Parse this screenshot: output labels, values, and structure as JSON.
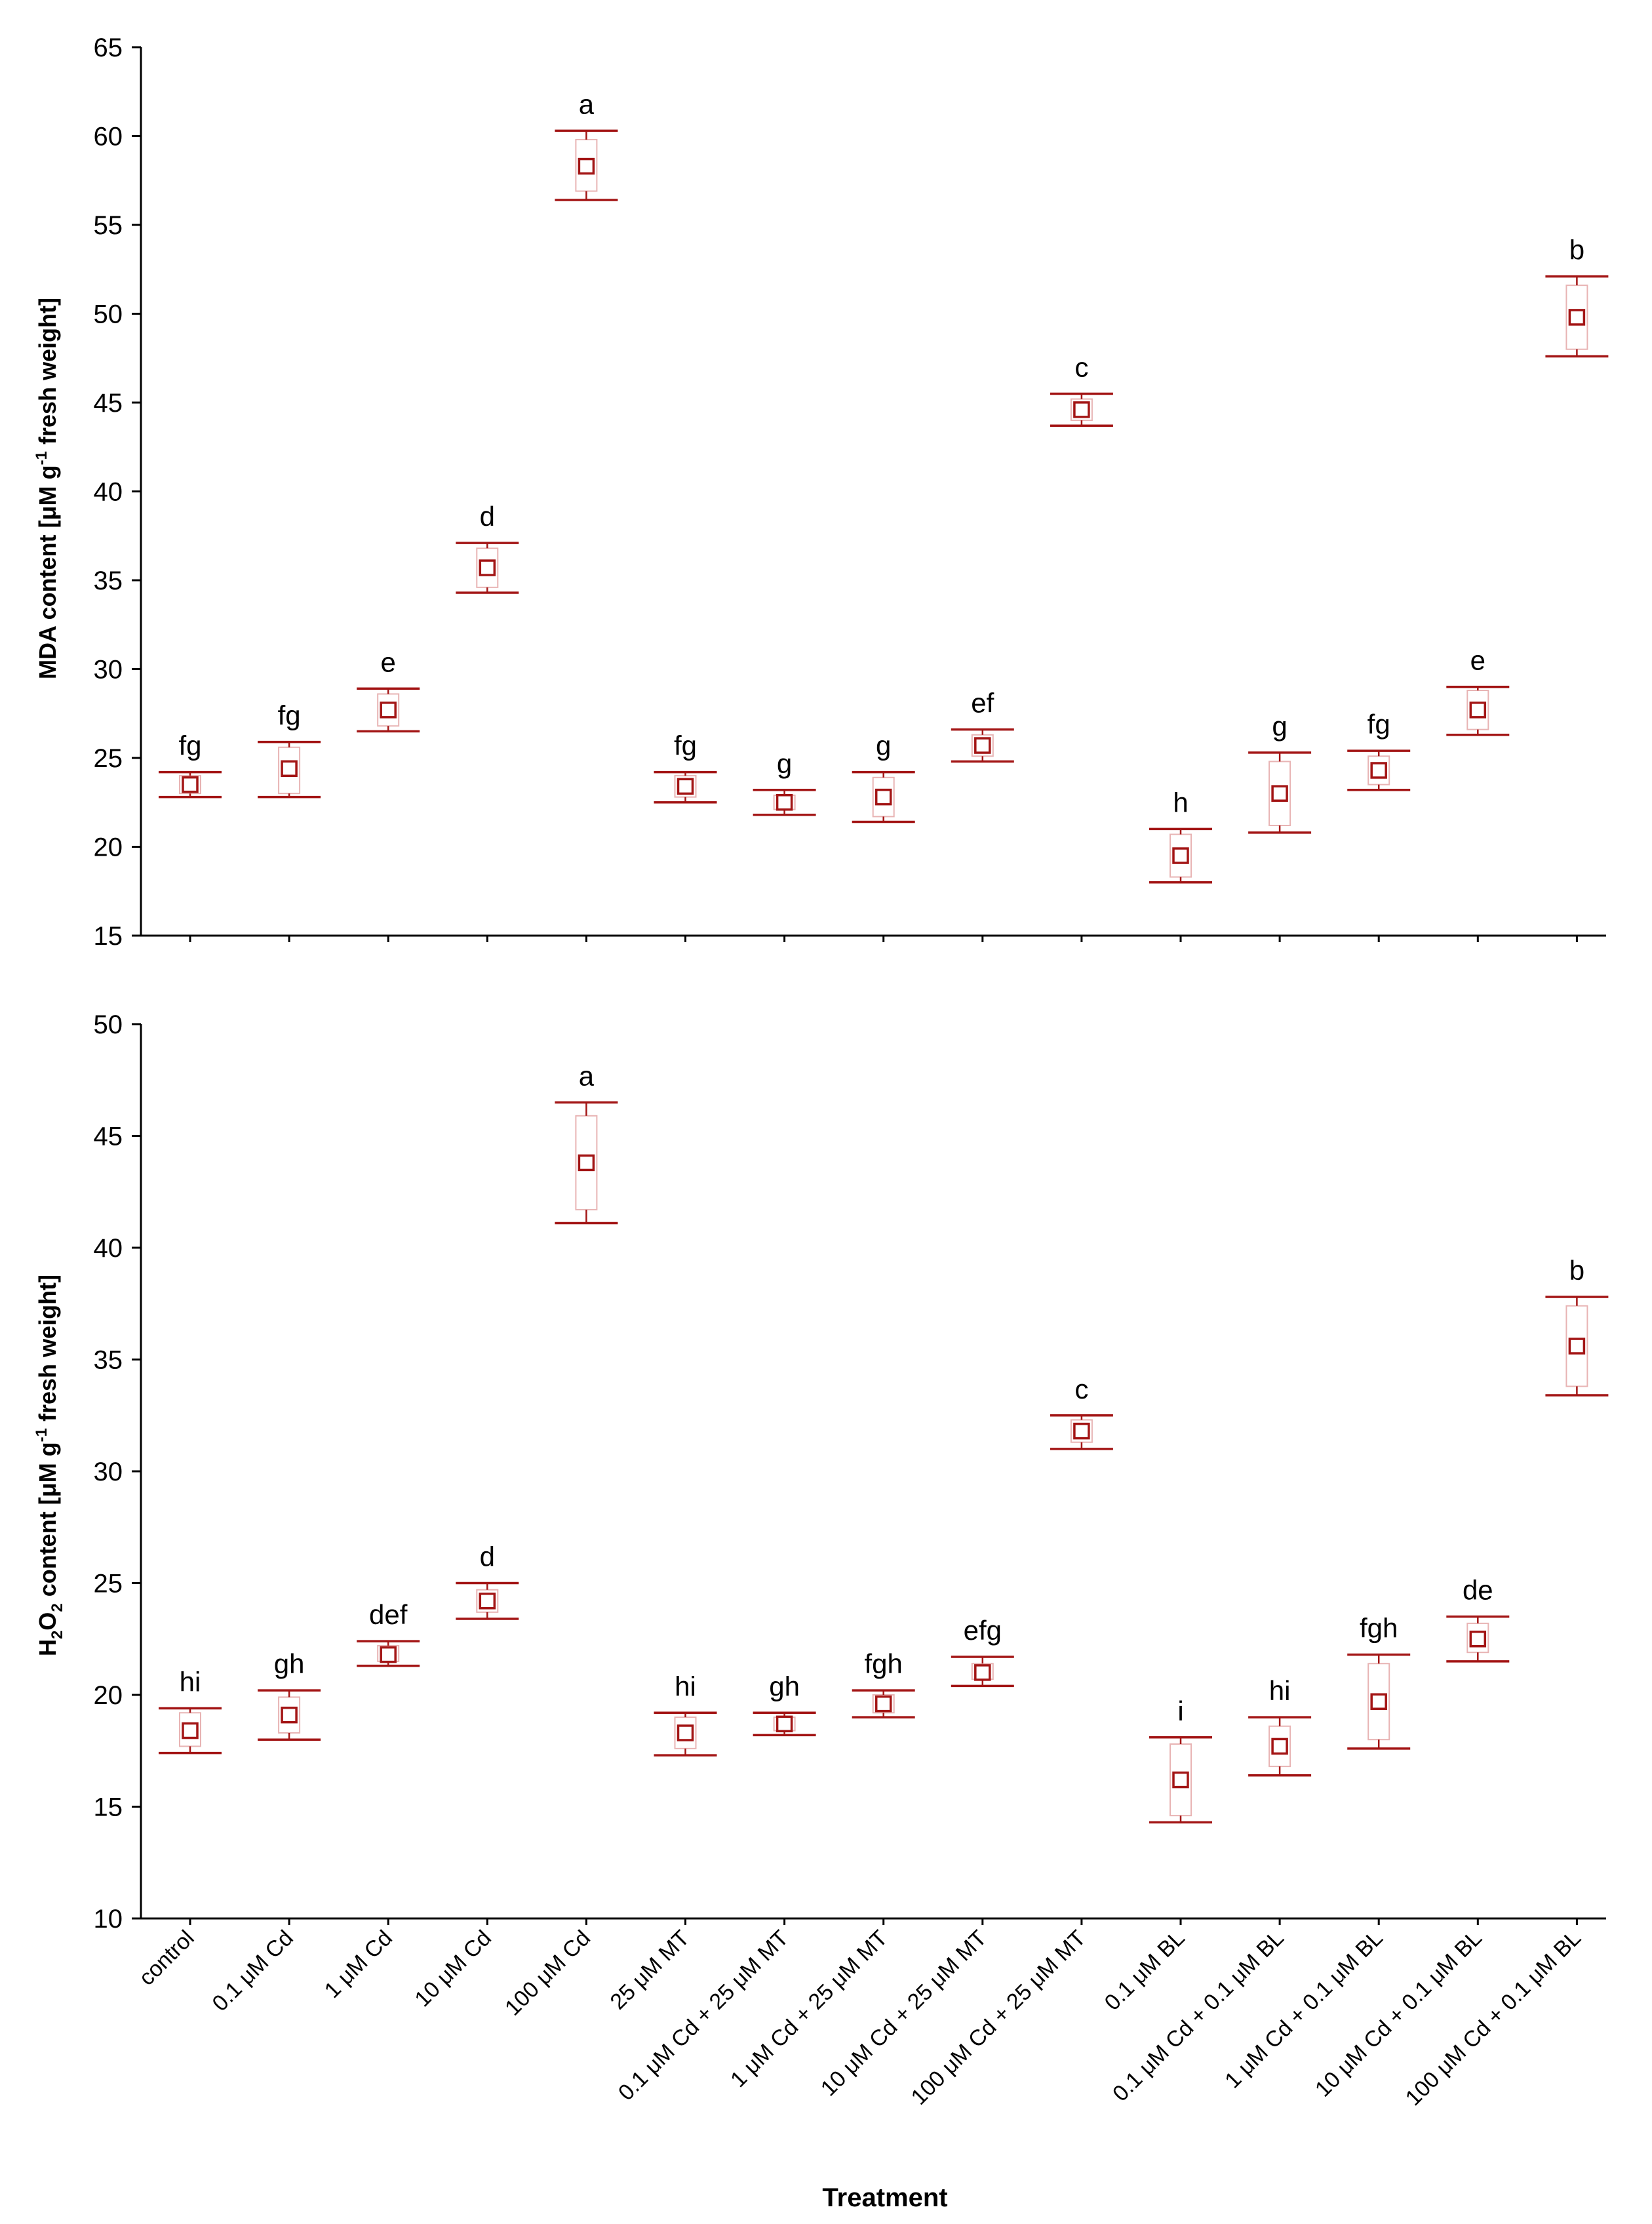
{
  "colors": {
    "marker": "#a31515",
    "box": "#e8b4b4",
    "axis": "#000000"
  },
  "xlabel": "Treatment",
  "categories": [
    "control",
    "0.1 μM Cd",
    "1 μM Cd",
    "10 μM Cd",
    "100 μM Cd",
    "25 μM MT",
    "0.1 μM Cd + 25 μM MT",
    "1 μM Cd + 25 μM MT",
    "10 μM Cd + 25 μM MT",
    "100 μM Cd + 25 μM MT",
    "0.1 μM BL",
    "0.1 μM Cd + 0.1 μM BL",
    "1 μM Cd + 0.1 μM BL",
    "10 μM Cd + 0.1 μM BL",
    "100 μM Cd + 0.1 μM BL"
  ],
  "chart_data": [
    {
      "type": "scatter",
      "title": "",
      "ylabel": "MDA content [μM g",
      "ylabel_sup": "-1",
      "ylabel_tail": " fresh weight]",
      "ylim": [
        15,
        65
      ],
      "yticks": [
        15,
        20,
        25,
        30,
        35,
        40,
        45,
        50,
        55,
        60,
        65
      ],
      "categories": [
        "control",
        "0.1 μM Cd",
        "1 μM Cd",
        "10 μM Cd",
        "100 μM Cd",
        "25 μM MT",
        "0.1 μM Cd + 25 μM MT",
        "1 μM Cd + 25 μM MT",
        "10 μM Cd + 25 μM MT",
        "100 μM Cd + 25 μM MT",
        "0.1 μM BL",
        "0.1 μM Cd + 0.1 μM BL",
        "1 μM Cd + 0.1 μM BL",
        "10 μM Cd + 0.1 μM BL",
        "100 μM Cd + 0.1 μM BL"
      ],
      "mean": [
        23.5,
        24.4,
        27.7,
        35.7,
        58.3,
        23.4,
        22.5,
        22.8,
        25.7,
        44.6,
        19.5,
        23.0,
        24.3,
        27.7,
        49.8
      ],
      "box_low": [
        23.0,
        23.0,
        26.8,
        34.6,
        56.9,
        22.8,
        22.1,
        21.7,
        25.1,
        44.0,
        18.3,
        21.2,
        23.5,
        26.6,
        48.0
      ],
      "box_high": [
        24.0,
        25.6,
        28.6,
        36.8,
        59.8,
        24.0,
        22.9,
        23.9,
        26.3,
        45.2,
        20.7,
        24.8,
        25.1,
        28.8,
        51.6
      ],
      "err_low": [
        22.8,
        22.8,
        26.5,
        34.3,
        56.4,
        22.5,
        21.8,
        21.4,
        24.8,
        43.7,
        18.0,
        20.8,
        23.2,
        26.3,
        47.6
      ],
      "err_high": [
        24.2,
        25.9,
        28.9,
        37.1,
        60.3,
        24.2,
        23.2,
        24.2,
        26.6,
        45.5,
        21.0,
        25.3,
        25.4,
        29.0,
        52.1
      ],
      "letters": [
        "fg",
        "fg",
        "e",
        "d",
        "a",
        "fg",
        "g",
        "g",
        "ef",
        "c",
        "h",
        "g",
        "fg",
        "e",
        "b"
      ]
    },
    {
      "type": "scatter",
      "title": "",
      "ylabel": "H",
      "ylabel_sub1": "2",
      "ylabel_mid": "O",
      "ylabel_sub2": "2",
      "ylabel_rest": " content [μM g",
      "ylabel_sup": "-1",
      "ylabel_tail": " fresh weight]",
      "ylim": [
        10,
        50
      ],
      "yticks": [
        10,
        15,
        20,
        25,
        30,
        35,
        40,
        45,
        50
      ],
      "categories": [
        "control",
        "0.1 μM Cd",
        "1 μM Cd",
        "10 μM Cd",
        "100 μM Cd",
        "25 μM MT",
        "0.1 μM Cd + 25 μM MT",
        "1 μM Cd + 25 μM MT",
        "10 μM Cd + 25 μM MT",
        "100 μM Cd + 25 μM MT",
        "0.1 μM BL",
        "0.1 μM Cd + 0.1 μM BL",
        "1 μM Cd + 0.1 μM BL",
        "10 μM Cd + 0.1 μM BL",
        "100 μM Cd + 0.1 μM BL"
      ],
      "mean": [
        18.4,
        19.1,
        21.8,
        24.2,
        43.8,
        18.3,
        18.7,
        19.6,
        21.0,
        31.8,
        16.2,
        17.7,
        19.7,
        22.5,
        35.6
      ],
      "box_low": [
        17.7,
        18.3,
        21.5,
        23.7,
        41.7,
        17.6,
        18.4,
        19.2,
        20.7,
        31.3,
        14.6,
        16.8,
        18.0,
        21.9,
        33.8
      ],
      "box_high": [
        19.2,
        19.9,
        22.2,
        24.7,
        45.9,
        19.0,
        19.0,
        20.0,
        21.4,
        32.3,
        17.8,
        18.6,
        21.4,
        23.2,
        37.4
      ],
      "err_low": [
        17.4,
        18.0,
        21.3,
        23.4,
        41.1,
        17.3,
        18.2,
        19.0,
        20.4,
        31.0,
        14.3,
        16.4,
        17.6,
        21.5,
        33.4
      ],
      "err_high": [
        19.4,
        20.2,
        22.4,
        25.0,
        46.5,
        19.2,
        19.2,
        20.2,
        21.7,
        32.5,
        18.1,
        19.0,
        21.8,
        23.5,
        37.8
      ],
      "letters": [
        "hi",
        "gh",
        "def",
        "d",
        "a",
        "hi",
        "gh",
        "fgh",
        "efg",
        "c",
        "i",
        "hi",
        "fgh",
        "de",
        "b"
      ]
    }
  ]
}
